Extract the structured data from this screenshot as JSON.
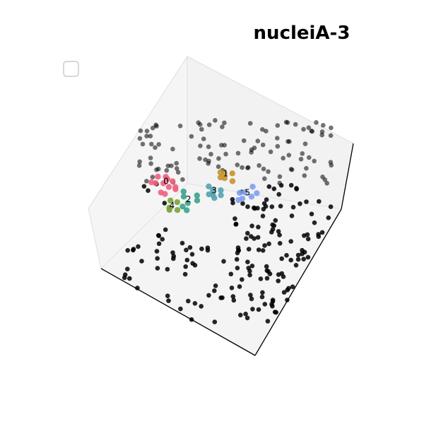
{
  "chart_data": {
    "type": "scatter",
    "projection": "3d",
    "title": "nucleiA-3",
    "xlabel": "",
    "ylabel": "",
    "zlabel": "",
    "grid": false,
    "legend": {
      "placement": "top-left",
      "entries": []
    },
    "background_point_color": "#000000",
    "cluster_colors": [
      "#f0607f",
      "#c8922f",
      "#3aa38a",
      "#52a3b0",
      "#7aa33a",
      "#7f9ff0"
    ],
    "clusters": [
      {
        "label": "0",
        "points": [
          [
            -1.7,
            0.6,
            0.1
          ],
          [
            -1.5,
            0.9,
            0.0
          ],
          [
            -1.9,
            0.4,
            0.2
          ],
          [
            -1.6,
            0.2,
            0.1
          ],
          [
            -1.3,
            0.7,
            0.0
          ],
          [
            -2.0,
            0.8,
            0.1
          ],
          [
            -1.4,
            0.4,
            0.2
          ],
          [
            -1.8,
            1.0,
            0.0
          ],
          [
            -1.2,
            0.5,
            0.1
          ],
          [
            -1.6,
            0.7,
            0.2
          ],
          [
            -2.1,
            0.5,
            0.1
          ],
          [
            -1.5,
            0.3,
            0.0
          ]
        ]
      },
      {
        "label": "1",
        "points": [
          [
            0.1,
            1.6,
            0.2
          ],
          [
            0.3,
            1.8,
            0.1
          ],
          [
            -0.1,
            1.7,
            0.1
          ],
          [
            0.2,
            1.4,
            0.2
          ],
          [
            0.4,
            1.6,
            0.0
          ],
          [
            0.0,
            1.5,
            0.1
          ]
        ]
      },
      {
        "label": "2",
        "points": [
          [
            -0.6,
            0.2,
            0.0
          ],
          [
            -0.4,
            0.5,
            0.1
          ],
          [
            -0.8,
            0.3,
            0.1
          ],
          [
            -0.5,
            -0.1,
            0.0
          ],
          [
            -0.3,
            0.3,
            0.1
          ],
          [
            -0.7,
            0.0,
            0.0
          ],
          [
            -0.9,
            0.5,
            0.1
          ]
        ]
      },
      {
        "label": "3",
        "points": [
          [
            0.0,
            0.9,
            0.1
          ],
          [
            0.2,
            1.1,
            0.0
          ],
          [
            -0.2,
            1.0,
            0.1
          ],
          [
            0.1,
            0.7,
            0.1
          ],
          [
            0.3,
            0.9,
            0.0
          ],
          [
            -0.1,
            0.8,
            0.0
          ],
          [
            0.2,
            0.6,
            0.1
          ]
        ]
      },
      {
        "label": "4",
        "points": [
          [
            -1.1,
            -0.2,
            0.0
          ],
          [
            -0.9,
            0.0,
            0.1
          ],
          [
            -1.2,
            0.1,
            0.0
          ],
          [
            -1.0,
            -0.4,
            0.1
          ],
          [
            -0.8,
            -0.2,
            0.0
          ]
        ]
      },
      {
        "label": "5",
        "points": [
          [
            1.0,
            1.3,
            0.0
          ],
          [
            1.2,
            1.5,
            0.1
          ],
          [
            0.9,
            1.1,
            0.1
          ],
          [
            1.3,
            1.2,
            0.0
          ],
          [
            1.1,
            0.9,
            0.1
          ],
          [
            1.4,
            1.4,
            0.0
          ],
          [
            1.0,
            0.8,
            0.1
          ]
        ]
      }
    ],
    "cluster_label_positions": [
      {
        "label": "0",
        "position": [
          -1.6,
          0.6,
          0.2
        ]
      },
      {
        "label": "1",
        "position": [
          0.15,
          1.6,
          0.2
        ]
      },
      {
        "label": "2",
        "position": [
          -0.6,
          0.25,
          0.1
        ]
      },
      {
        "label": "3",
        "position": [
          0.05,
          0.9,
          0.1
        ]
      },
      {
        "label": "4",
        "position": [
          -1.0,
          -0.2,
          0.1
        ]
      },
      {
        "label": "5",
        "position": [
          1.15,
          1.2,
          0.1
        ]
      }
    ]
  }
}
